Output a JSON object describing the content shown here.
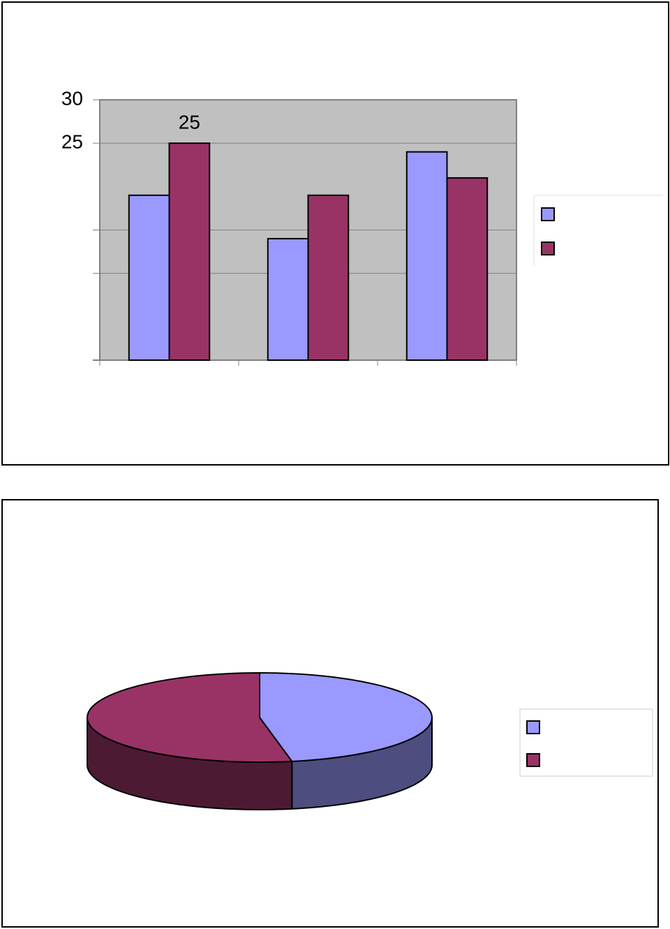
{
  "chart_data": [
    {
      "type": "bar",
      "categories": [
        null,
        null,
        null
      ],
      "series": [
        {
          "name": null,
          "color": "#9999ff",
          "values": [
            19,
            14,
            24
          ]
        },
        {
          "name": null,
          "color": "#993366",
          "values": [
            25,
            19,
            21
          ],
          "value_labels": [
            "25",
            null,
            null
          ]
        }
      ],
      "ylim": [
        0,
        30
      ],
      "yticks": [
        {
          "value": 10,
          "label": null
        },
        {
          "value": 15,
          "label": null
        },
        25,
        30
      ],
      "grid": true,
      "legend": "right"
    },
    {
      "type": "pie",
      "categories": [
        null,
        null
      ],
      "values": [
        47,
        53
      ],
      "colors": [
        "#9999ff",
        "#993366"
      ],
      "legend": "right"
    }
  ]
}
